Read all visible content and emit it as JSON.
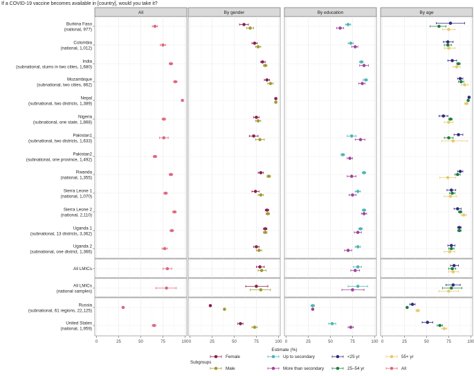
{
  "chart_data": {
    "type": "scatter",
    "title": "If a COVID-19 vaccine becomes available in [country], would you take it?",
    "xlabel": "Estimate (%)",
    "xlim": [
      -2,
      102
    ],
    "xticks": [
      "0",
      "25",
      "50",
      "75",
      "100"
    ],
    "panels": [
      "All",
      "By gender",
      "By education",
      "By age"
    ],
    "legend": {
      "title": "Subgroups",
      "position": "bottom",
      "entries": [
        {
          "name": "Female",
          "color": "#8B1E4B"
        },
        {
          "name": "Male",
          "color": "#9E9A2E"
        },
        {
          "name": "Up to secondary",
          "color": "#4DB6B0"
        },
        {
          "name": "More than secondary",
          "color": "#A0449C"
        },
        {
          "name": "<25 yr",
          "color": "#2E2A7C"
        },
        {
          "name": "25–54 yr",
          "color": "#1E7E3E"
        },
        {
          "name": "55+ yr",
          "color": "#E8C96A"
        },
        {
          "name": "All",
          "color": "#E0667D"
        }
      ]
    },
    "rows": [
      {
        "name": "Burkina Faso",
        "sub": "(national, 977)",
        "all": [
          66,
          63,
          69
        ],
        "gender": {
          "Female": [
            61,
            56,
            66
          ],
          "Male": [
            68,
            64,
            72
          ]
        },
        "education": {
          "Up to secondary": [
            70,
            67,
            73
          ],
          "More than secondary": [
            61,
            57,
            65
          ]
        },
        "age": {
          "<25 yr": [
            77,
            61,
            93
          ],
          "25–54 yr": [
            64,
            54,
            72
          ],
          "55+ yr": [
            75,
            68,
            82
          ]
        }
      },
      {
        "name": "Colombia",
        "sub": "(national, 1,012)",
        "all": [
          75,
          72,
          78
        ],
        "gender": {
          "Female": [
            73,
            70,
            76
          ],
          "Male": [
            77,
            74,
            80
          ]
        },
        "education": {
          "Up to secondary": [
            73,
            70,
            76
          ],
          "More than secondary": [
            78,
            74,
            81
          ]
        },
        "age": {
          "<25 yr": [
            74,
            69,
            80
          ],
          "25–54 yr": [
            74,
            70,
            78
          ],
          "55+ yr": [
            75,
            70,
            82
          ]
        }
      },
      {
        "name": "India",
        "sub": "(subnational, slums in two cities, 1,680)",
        "all": [
          84,
          82,
          86
        ],
        "gender": {
          "Female": [
            82,
            80,
            85
          ],
          "Male": [
            85,
            83,
            87
          ]
        },
        "education": {
          "Up to secondary": [
            85,
            83,
            87
          ],
          "More than secondary": [
            88,
            83,
            93
          ]
        },
        "age": {
          "<25 yr": [
            79,
            74,
            84
          ],
          "25–54 yr": [
            86,
            84,
            88
          ],
          "55+ yr": [
            84,
            80,
            88
          ]
        }
      },
      {
        "name": "Mozambique",
        "sub": "(subnational, two cities, 862)",
        "all": [
          89,
          87,
          91
        ],
        "gender": {
          "Female": [
            87,
            84,
            90
          ],
          "Male": [
            91,
            88,
            94
          ]
        },
        "education": {
          "Up to secondary": [
            90,
            87,
            92
          ],
          "More than secondary": [
            86,
            82,
            89
          ]
        },
        "age": {
          "<25 yr": [
            88,
            85,
            91
          ],
          "25–54 yr": [
            89,
            86,
            92
          ],
          "55+ yr": [
            93,
            89,
            97
          ]
        }
      },
      {
        "name": "Nepal",
        "sub": "(subnational, two districts, 1,389)",
        "all": [
          97,
          96,
          98
        ],
        "gender": {
          "Female": [
            97,
            96,
            98
          ],
          "Male": [
            97,
            96,
            98
          ]
        },
        "education": {},
        "age": {
          "<25 yr": [
            98,
            97,
            99
          ],
          "25–54 yr": [
            97,
            96,
            98
          ],
          "55+ yr": [
            95,
            93,
            97
          ]
        }
      },
      {
        "name": "Nigeria",
        "sub": "(subnational, one state, 1,868)",
        "all": [
          76,
          74,
          78
        ],
        "gender": {
          "Female": [
            75,
            72,
            78
          ],
          "Male": [
            77,
            74,
            80
          ]
        },
        "education": {},
        "age": {
          "<25 yr": [
            69,
            64,
            74
          ],
          "25–54 yr": [
            77,
            75,
            79
          ],
          "55+ yr": [
            75,
            70,
            80
          ]
        }
      },
      {
        "name": "Pakistan1",
        "sub": "(subnational, two districts, 1,633)",
        "all": [
          76,
          71,
          81
        ],
        "gender": {
          "Female": [
            72,
            67,
            77
          ],
          "Male": [
            79,
            74,
            84
          ]
        },
        "education": {
          "Up to secondary": [
            74,
            69,
            79
          ],
          "More than secondary": [
            84,
            78,
            89
          ]
        },
        "age": {
          "<25 yr": [
            86,
            81,
            91
          ],
          "25–54 yr": [
            75,
            70,
            80
          ],
          "55+ yr": [
            80,
            67,
            96
          ]
        }
      },
      {
        "name": "Pakistan2",
        "sub": "(subnational, one province, 1,492)",
        "all": [
          66,
          64,
          68
        ],
        "gender": {},
        "education": {
          "Up to secondary": [
            64,
            62,
            66
          ],
          "More than secondary": [
            72,
            69,
            75
          ]
        },
        "age": {}
      },
      {
        "name": "Rwanda",
        "sub": "(national, 1,355)",
        "all": [
          84,
          82,
          86
        ],
        "gender": {
          "Female": [
            80,
            77,
            83
          ],
          "Male": [
            89,
            87,
            91
          ]
        },
        "education": {
          "Up to secondary": [
            88,
            86,
            90
          ],
          "More than secondary": [
            74,
            69,
            79
          ]
        },
        "age": {
          "<25 yr": [
            88,
            85,
            91
          ],
          "25–54 yr": [
            85,
            82,
            88
          ],
          "55+ yr": [
            74,
            65,
            83
          ]
        }
      },
      {
        "name": "Sierra Leone 1",
        "sub": "(national, 1,070)",
        "all": [
          78,
          76,
          80
        ],
        "gender": {
          "Female": [
            74,
            70,
            78
          ],
          "Male": [
            80,
            77,
            83
          ]
        },
        "education": {
          "Up to secondary": [
            81,
            78,
            84
          ],
          "More than secondary": [
            75,
            71,
            79
          ]
        },
        "age": {
          "<25 yr": [
            78,
            73,
            83
          ],
          "25–54 yr": [
            79,
            76,
            82
          ],
          "55+ yr": [
            77,
            70,
            84
          ]
        }
      },
      {
        "name": "Sierra Leone 2",
        "sub": "(national, 2,110)",
        "all": [
          88,
          86,
          90
        ],
        "gender": {
          "Female": [
            87,
            85,
            89
          ],
          "Male": [
            88,
            86,
            90
          ]
        },
        "education": {
          "Up to secondary": [
            88,
            86,
            90
          ],
          "More than secondary": [
            88,
            85,
            91
          ]
        },
        "age": {
          "<25 yr": [
            85,
            81,
            89
          ],
          "25–54 yr": [
            88,
            86,
            90
          ],
          "55+ yr": [
            92,
            89,
            95
          ]
        }
      },
      {
        "name": "Uganda 1",
        "sub": "(subnational, 13 districts, 3,362)",
        "all": [
          85,
          83,
          87
        ],
        "gender": {
          "Female": [
            85,
            83,
            87
          ],
          "Male": [
            85,
            83,
            87
          ]
        },
        "education": {
          "Up to secondary": [
            84,
            82,
            86
          ],
          "More than secondary": [
            81,
            77,
            85
          ]
        },
        "age": {
          "<25 yr": [
            87,
            85,
            89
          ],
          "25–54 yr": [
            87,
            85,
            89
          ]
        }
      },
      {
        "name": "Uganda 2",
        "sub": "(subnational, one district, 1,366)",
        "all": [
          77,
          74,
          80
        ],
        "gender": {
          "Female": [
            75,
            72,
            78
          ],
          "Male": [
            78,
            75,
            81
          ]
        },
        "education": {
          "Up to secondary": [
            81,
            78,
            84
          ],
          "More than secondary": [
            70,
            66,
            74
          ]
        },
        "age": {
          "<25 yr": [
            78,
            74,
            82
          ],
          "25–54 yr": [
            78,
            75,
            81
          ],
          "55+ yr": [
            76,
            70,
            82
          ]
        }
      },
      {
        "name": "All LMICs",
        "sub": "",
        "all": [
          80,
          75,
          85
        ],
        "gender": {
          "Female": [
            79,
            75,
            84
          ],
          "Male": [
            81,
            77,
            86
          ]
        },
        "education": {
          "Up to secondary": [
            81,
            76,
            85
          ],
          "More than secondary": [
            78,
            73,
            83
          ]
        },
        "age": {
          "<25 yr": [
            81,
            77,
            86
          ],
          "25–54 yr": [
            79,
            75,
            83
          ],
          "55+ yr": [
            80,
            75,
            86
          ]
        }
      },
      {
        "name": "All LMICs",
        "sub": "(national samples)",
        "all": [
          79,
          67,
          90
        ],
        "gender": {
          "Female": [
            75,
            63,
            88
          ],
          "Male": [
            80,
            68,
            91
          ]
        },
        "education": {
          "Up to secondary": [
            81,
            70,
            92
          ],
          "More than secondary": [
            75,
            63,
            88
          ]
        },
        "age": {
          "<25 yr": [
            80,
            72,
            88
          ],
          "25–54 yr": [
            78,
            68,
            90
          ],
          "55+ yr": [
            75,
            64,
            86
          ]
        }
      },
      {
        "name": "Russia",
        "sub": "(subnational, 61 regions, 22,125)",
        "all": [
          30,
          29,
          31
        ],
        "gender": {
          "Female": [
            23,
            22,
            24
          ],
          "Male": [
            39,
            38,
            40
          ]
        },
        "education": {
          "Up to secondary": [
            30,
            28,
            32
          ],
          "More than secondary": [
            30,
            29,
            31
          ]
        },
        "age": {
          "<25 yr": [
            34,
            31,
            37
          ],
          "25–54 yr": [
            28,
            27,
            29
          ],
          "55+ yr": [
            40,
            38,
            42
          ]
        }
      },
      {
        "name": "United States",
        "sub": "(national, 1,959)",
        "all": [
          65,
          63,
          67
        ],
        "gender": {
          "Female": [
            57,
            54,
            60
          ],
          "Male": [
            73,
            70,
            76
          ]
        },
        "education": {
          "Up to secondary": [
            52,
            48,
            56
          ],
          "More than secondary": [
            73,
            70,
            76
          ]
        },
        "age": {
          "<25 yr": [
            51,
            45,
            57
          ],
          "25–54 yr": [
            65,
            62,
            68
          ],
          "55+ yr": [
            70,
            67,
            73
          ]
        }
      }
    ]
  }
}
